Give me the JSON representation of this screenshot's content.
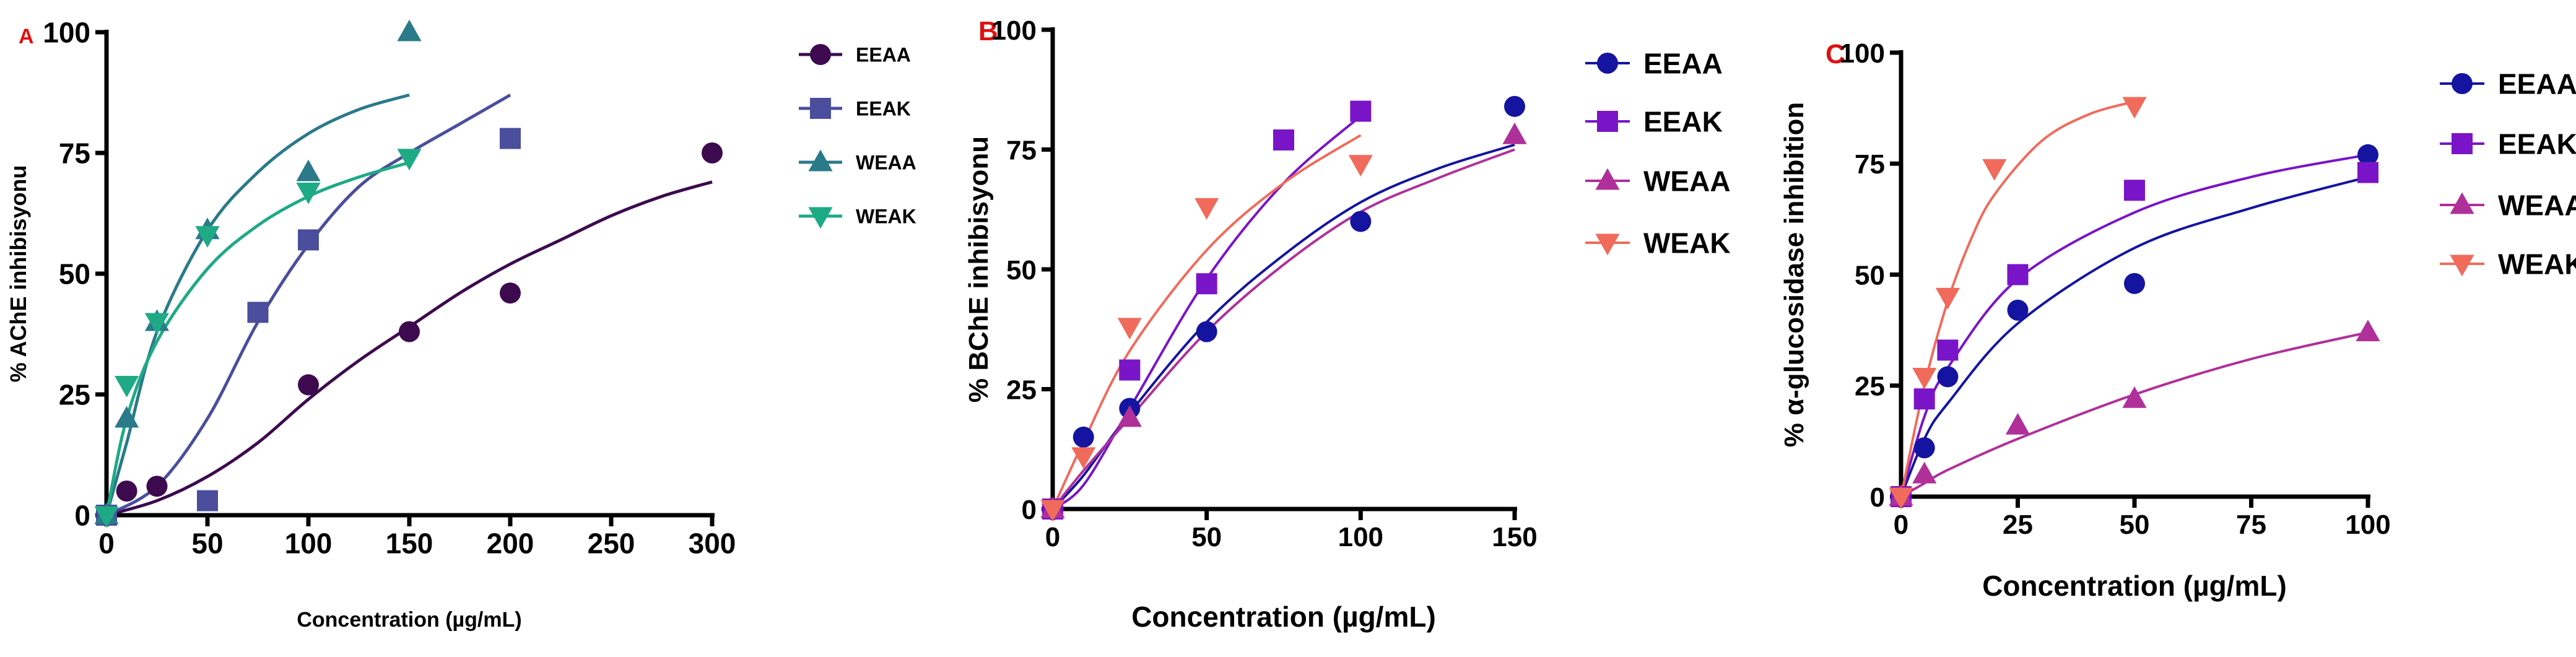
{
  "colors": {
    "EEAA": "#3d0a4f",
    "EEAK": "#4a4e9c",
    "WEAA": "#2a7a8a",
    "WEAK": "#1faa86",
    "EEAA_B": "#1414a0",
    "EEAK_B": "#7a14c8",
    "WEAA_B": "#b0309a",
    "WEAK_B": "#f06b5b"
  },
  "chart_data": [
    {
      "type": "scatter",
      "panel_letter": "A",
      "ylabel": "% AChE inhibisyonu",
      "xlabel": "Concentration (µg/mL)",
      "xlim": [
        0,
        300
      ],
      "ylim": [
        0,
        100
      ],
      "xticks": [
        0,
        50,
        100,
        150,
        200,
        250,
        300
      ],
      "yticks": [
        0,
        25,
        50,
        75,
        100
      ],
      "legend_position": "right",
      "series": [
        {
          "name": "EEAA",
          "marker": "circle",
          "color_key": "EEAA",
          "points": [
            [
              0,
              0
            ],
            [
              10,
              5
            ],
            [
              25,
              6
            ],
            [
              100,
              27
            ],
            [
              150,
              38
            ],
            [
              200,
              46
            ],
            [
              300,
              75
            ]
          ],
          "fit": [
            [
              0,
              0
            ],
            [
              25,
              3
            ],
            [
              50,
              8
            ],
            [
              75,
              15
            ],
            [
              100,
              24
            ],
            [
              125,
              32
            ],
            [
              150,
              39
            ],
            [
              175,
              46
            ],
            [
              200,
              52
            ],
            [
              225,
              57
            ],
            [
              250,
              62
            ],
            [
              275,
              66
            ],
            [
              300,
              69
            ]
          ]
        },
        {
          "name": "EEAK",
          "marker": "square",
          "color_key": "EEAK",
          "points": [
            [
              0,
              0
            ],
            [
              50,
              3
            ],
            [
              75,
              42
            ],
            [
              100,
              57
            ],
            [
              200,
              78
            ]
          ],
          "fit": [
            [
              0,
              0
            ],
            [
              25,
              6
            ],
            [
              50,
              20
            ],
            [
              75,
              40
            ],
            [
              100,
              56
            ],
            [
              125,
              68
            ],
            [
              150,
              75
            ],
            [
              175,
              81
            ],
            [
              200,
              87
            ]
          ]
        },
        {
          "name": "WEAA",
          "marker": "triangle-up",
          "color_key": "WEAA",
          "points": [
            [
              0,
              0
            ],
            [
              10,
              20
            ],
            [
              25,
              40
            ],
            [
              50,
              59
            ],
            [
              100,
              71
            ],
            [
              150,
              100
            ]
          ],
          "fit": [
            [
              0,
              0
            ],
            [
              10,
              15
            ],
            [
              25,
              38
            ],
            [
              50,
              59
            ],
            [
              75,
              71
            ],
            [
              100,
              79
            ],
            [
              125,
              84
            ],
            [
              150,
              87
            ]
          ]
        },
        {
          "name": "WEAK",
          "marker": "triangle-down",
          "color_key": "WEAK",
          "points": [
            [
              0,
              0
            ],
            [
              10,
              27
            ],
            [
              25,
              40
            ],
            [
              50,
              58
            ],
            [
              100,
              67
            ],
            [
              150,
              74
            ]
          ],
          "fit": [
            [
              0,
              0
            ],
            [
              10,
              20
            ],
            [
              25,
              36
            ],
            [
              50,
              51
            ],
            [
              75,
              60
            ],
            [
              100,
              66
            ],
            [
              125,
              70
            ],
            [
              150,
              73
            ]
          ]
        }
      ]
    },
    {
      "type": "scatter",
      "panel_letter": "B",
      "ylabel": "% BChE inhibisyonu",
      "xlabel": "Concentration (µg/mL)",
      "xlim": [
        0,
        150
      ],
      "ylim": [
        0,
        100
      ],
      "xticks": [
        0,
        50,
        100,
        150
      ],
      "yticks": [
        0,
        25,
        50,
        75,
        100
      ],
      "legend_position": "right",
      "series": [
        {
          "name": "EEAA",
          "marker": "circle",
          "color_key": "EEAA_B",
          "points": [
            [
              0,
              0
            ],
            [
              10,
              15
            ],
            [
              25,
              21
            ],
            [
              50,
              37
            ],
            [
              100,
              60
            ],
            [
              150,
              84
            ]
          ],
          "fit": [
            [
              0,
              0
            ],
            [
              10,
              7
            ],
            [
              25,
              20
            ],
            [
              50,
              39
            ],
            [
              75,
              53
            ],
            [
              100,
              64
            ],
            [
              125,
              71
            ],
            [
              150,
              76
            ]
          ]
        },
        {
          "name": "EEAK",
          "marker": "square",
          "color_key": "EEAK_B",
          "points": [
            [
              0,
              0
            ],
            [
              25,
              29
            ],
            [
              50,
              47
            ],
            [
              75,
              77
            ],
            [
              100,
              83
            ]
          ],
          "fit": [
            [
              0,
              0
            ],
            [
              10,
              5
            ],
            [
              25,
              21
            ],
            [
              50,
              48
            ],
            [
              75,
              68
            ],
            [
              100,
              82
            ]
          ]
        },
        {
          "name": "WEAA",
          "marker": "triangle-up",
          "color_key": "WEAA_B",
          "points": [
            [
              0,
              0
            ],
            [
              25,
              19
            ],
            [
              150,
              78
            ]
          ],
          "fit": [
            [
              0,
              0
            ],
            [
              10,
              8
            ],
            [
              25,
              19
            ],
            [
              50,
              37
            ],
            [
              75,
              51
            ],
            [
              100,
              62
            ],
            [
              125,
              69
            ],
            [
              150,
              75
            ]
          ]
        },
        {
          "name": "WEAK",
          "marker": "triangle-down",
          "color_key": "WEAK_B",
          "points": [
            [
              0,
              0
            ],
            [
              10,
              11
            ],
            [
              25,
              38
            ],
            [
              50,
              63
            ],
            [
              100,
              72
            ]
          ],
          "fit": [
            [
              0,
              0
            ],
            [
              10,
              14
            ],
            [
              25,
              33
            ],
            [
              50,
              54
            ],
            [
              75,
              68
            ],
            [
              100,
              78
            ]
          ]
        }
      ]
    },
    {
      "type": "scatter",
      "panel_letter": "C",
      "ylabel": "% α-glucosidase inhibition",
      "xlabel": "Concentration (µg/mL)",
      "xlim": [
        0,
        100
      ],
      "ylim": [
        0,
        100
      ],
      "xticks": [
        0,
        25,
        50,
        75,
        100
      ],
      "yticks": [
        0,
        25,
        50,
        75,
        100
      ],
      "legend_position": "right",
      "series": [
        {
          "name": "EEAA",
          "marker": "circle",
          "color_key": "EEAA_B",
          "points": [
            [
              0,
              0
            ],
            [
              5,
              11
            ],
            [
              10,
              27
            ],
            [
              25,
              42
            ],
            [
              50,
              48
            ],
            [
              100,
              77
            ]
          ],
          "fit": [
            [
              0,
              0
            ],
            [
              5,
              13
            ],
            [
              10,
              21
            ],
            [
              25,
              39
            ],
            [
              50,
              56
            ],
            [
              75,
              65
            ],
            [
              100,
              72
            ]
          ]
        },
        {
          "name": "EEAK",
          "marker": "square",
          "color_key": "EEAK_B",
          "points": [
            [
              0,
              0
            ],
            [
              5,
              22
            ],
            [
              10,
              33
            ],
            [
              25,
              50
            ],
            [
              50,
              69
            ],
            [
              100,
              73
            ]
          ],
          "fit": [
            [
              0,
              0
            ],
            [
              5,
              18
            ],
            [
              10,
              29
            ],
            [
              25,
              49
            ],
            [
              50,
              64
            ],
            [
              75,
              72
            ],
            [
              100,
              77
            ]
          ]
        },
        {
          "name": "WEAA",
          "marker": "triangle-up",
          "color_key": "WEAA_B",
          "points": [
            [
              0,
              0
            ],
            [
              5,
              5
            ],
            [
              25,
              16
            ],
            [
              50,
              22
            ],
            [
              100,
              37
            ]
          ],
          "fit": [
            [
              0,
              0
            ],
            [
              5,
              3
            ],
            [
              10,
              6
            ],
            [
              25,
              13
            ],
            [
              50,
              23
            ],
            [
              75,
              31
            ],
            [
              100,
              37
            ]
          ]
        },
        {
          "name": "WEAK",
          "marker": "triangle-down",
          "color_key": "WEAK_B",
          "points": [
            [
              0,
              0
            ],
            [
              5,
              27
            ],
            [
              10,
              45
            ],
            [
              20,
              74
            ],
            [
              50,
              88
            ]
          ],
          "fit": [
            [
              0,
              0
            ],
            [
              5,
              25
            ],
            [
              10,
              44
            ],
            [
              15,
              58
            ],
            [
              20,
              68
            ],
            [
              30,
              80
            ],
            [
              40,
              86
            ],
            [
              50,
              89
            ]
          ]
        }
      ]
    }
  ]
}
